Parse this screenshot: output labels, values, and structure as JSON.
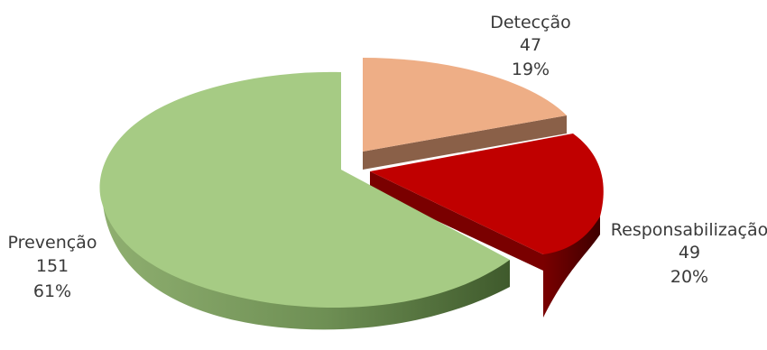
{
  "chart_data": {
    "type": "pie",
    "style": "3d-exploded",
    "slices": [
      {
        "name": "Detecção",
        "value": 47,
        "percent": "19%",
        "color": "#eeae86",
        "side_color": "#8a6048"
      },
      {
        "name": "Responsabilização",
        "value": 49,
        "percent": "20%",
        "color": "#c00000",
        "side_color": "#5e0000"
      },
      {
        "name": "Prevenção",
        "value": 151,
        "percent": "61%",
        "color": "#a6cb84",
        "side_color": "#6e8f54"
      }
    ]
  }
}
